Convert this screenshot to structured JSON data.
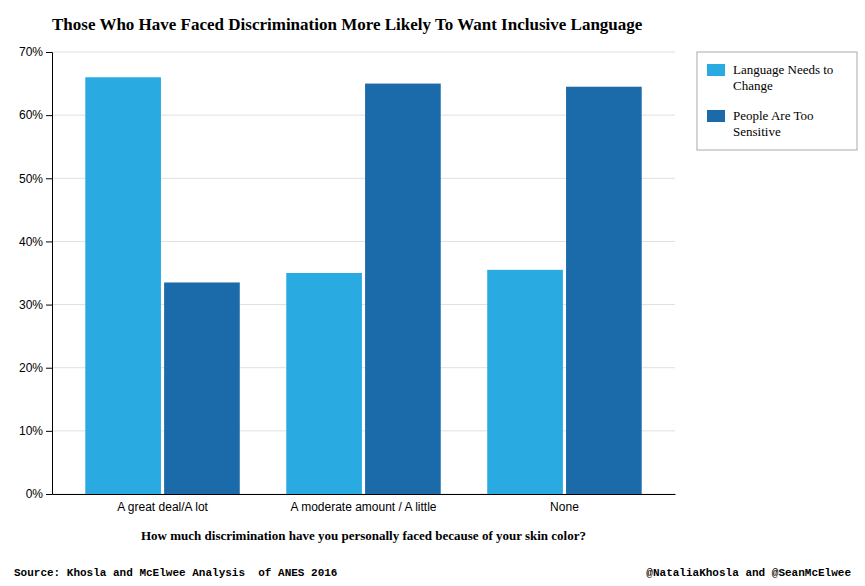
{
  "chart_data": {
    "type": "bar",
    "title": "Those Who Have Faced Discrimination More Likely To Want Inclusive Language",
    "categories": [
      "A great deal/A lot",
      "A moderate amount / A little",
      "None"
    ],
    "series": [
      {
        "name": "Language Needs to\nChange",
        "color": "#29ABE2",
        "values": [
          0.66,
          0.35,
          0.355
        ]
      },
      {
        "name": "People Are Too\nSensitive",
        "color": "#1B6BAA",
        "values": [
          0.335,
          0.65,
          0.645
        ]
      }
    ],
    "xlabel": "How much discrimination have you personally faced because of your skin color?",
    "ylim": [
      0,
      0.7
    ],
    "yticks": [
      {
        "value": 0.0,
        "label": "0%"
      },
      {
        "value": 0.1,
        "label": "10%"
      },
      {
        "value": 0.2,
        "label": "20%"
      },
      {
        "value": 0.3,
        "label": "30%"
      },
      {
        "value": 0.4,
        "label": "40%"
      },
      {
        "value": 0.5,
        "label": "50%"
      },
      {
        "value": 0.6,
        "label": "60%"
      },
      {
        "value": 0.7,
        "label": "70%"
      }
    ],
    "grid": true,
    "legend": "upper right",
    "annotations": [
      "Source: Khosla and McElwee Analysis  of ANES 2016",
      "@NataliaKhosla and @SeanMcElwee"
    ]
  }
}
